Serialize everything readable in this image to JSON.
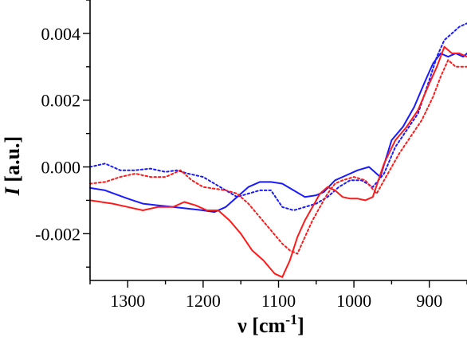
{
  "chart_data": {
    "type": "line",
    "xlabel": "ν [cm",
    "xlabel_sup": "-1",
    "xlabel_close": "]",
    "ylabel": "I",
    "ylabel_unit": " [a.u.]",
    "xlim": [
      1350,
      850
    ],
    "ylim": [
      -0.0034,
      0.005
    ],
    "x_reversed": true,
    "grid": false,
    "x_ticks": [
      1300,
      1200,
      1100,
      1000,
      900
    ],
    "x_tick_labels": [
      "1300",
      "1200",
      "1100",
      "1000",
      "900"
    ],
    "y_ticks": [
      0.004,
      0.002,
      0.0,
      -0.002
    ],
    "y_tick_labels": [
      "0.004",
      "0.002",
      "0.000",
      "-0.002"
    ],
    "series": [
      {
        "color": "#1a1aff",
        "style": "solid",
        "x": [
          1350,
          1330,
          1300,
          1280,
          1260,
          1240,
          1220,
          1200,
          1185,
          1170,
          1155,
          1140,
          1125,
          1110,
          1095,
          1080,
          1065,
          1050,
          1040,
          1025,
          1010,
          995,
          980,
          965,
          950,
          935,
          920,
          905,
          895,
          885,
          875,
          865,
          855,
          850
        ],
        "y": [
          -0.00063,
          -0.0007,
          -0.00095,
          -0.0011,
          -0.00115,
          -0.0012,
          -0.00125,
          -0.0013,
          -0.00135,
          -0.0012,
          -0.0009,
          -0.0006,
          -0.00045,
          -0.00045,
          -0.0005,
          -0.0007,
          -0.0009,
          -0.00085,
          -0.00075,
          -0.0004,
          -0.00025,
          -0.0001,
          0.0,
          -0.0003,
          0.0008,
          0.0012,
          0.0018,
          0.0026,
          0.0031,
          0.0034,
          0.0033,
          0.0034,
          0.0033,
          0.0034
        ]
      },
      {
        "color": "#1a1aff",
        "style": "dotted",
        "x": [
          1350,
          1330,
          1310,
          1290,
          1270,
          1250,
          1235,
          1220,
          1200,
          1185,
          1170,
          1155,
          1140,
          1125,
          1110,
          1095,
          1080,
          1065,
          1050,
          1035,
          1020,
          1005,
          990,
          975,
          960,
          945,
          930,
          915,
          900,
          890,
          880,
          870,
          860,
          850
        ],
        "y": [
          0.0,
          0.0001,
          -0.0001,
          -0.0001,
          -5e-05,
          -0.00015,
          -0.0001,
          -0.0002,
          -0.0003,
          -0.0005,
          -0.0007,
          -0.0009,
          -0.0008,
          -0.0007,
          -0.0007,
          -0.0012,
          -0.0013,
          -0.0012,
          -0.0011,
          -0.0009,
          -0.0006,
          -0.0004,
          -0.0004,
          -0.0006,
          -0.0002,
          0.0006,
          0.0011,
          0.0016,
          0.0026,
          0.0033,
          0.0038,
          0.004,
          0.0042,
          0.0043
        ]
      },
      {
        "color": "#ff1a1a",
        "style": "solid",
        "x": [
          1350,
          1320,
          1300,
          1280,
          1260,
          1240,
          1225,
          1210,
          1195,
          1180,
          1165,
          1150,
          1135,
          1120,
          1105,
          1095,
          1085,
          1075,
          1065,
          1055,
          1045,
          1035,
          1025,
          1015,
          1005,
          995,
          985,
          975,
          960,
          945,
          930,
          915,
          900,
          890,
          880,
          870,
          860,
          850
        ],
        "y": [
          -0.001,
          -0.0011,
          -0.0012,
          -0.0013,
          -0.0012,
          -0.0012,
          -0.00105,
          -0.00115,
          -0.0013,
          -0.0013,
          -0.0016,
          -0.002,
          -0.0025,
          -0.0028,
          -0.0032,
          -0.0033,
          -0.0028,
          -0.0021,
          -0.0016,
          -0.0012,
          -0.0008,
          -0.0006,
          -0.0007,
          -0.0009,
          -0.00095,
          -0.00095,
          -0.001,
          -0.0009,
          0.0001,
          0.0008,
          0.0012,
          0.0017,
          0.0025,
          0.003,
          0.0036,
          0.0034,
          0.0034,
          0.0033
        ]
      },
      {
        "color": "#ff1a1a",
        "style": "dotted",
        "x": [
          1350,
          1330,
          1310,
          1290,
          1270,
          1250,
          1230,
          1215,
          1200,
          1185,
          1170,
          1155,
          1140,
          1125,
          1110,
          1095,
          1085,
          1075,
          1065,
          1055,
          1045,
          1035,
          1025,
          1015,
          1000,
          985,
          970,
          955,
          940,
          925,
          910,
          895,
          885,
          875,
          865,
          850
        ],
        "y": [
          -0.0005,
          -0.00045,
          -0.0003,
          -0.0002,
          -0.0003,
          -0.0003,
          -0.0001,
          -0.0004,
          -0.0006,
          -0.00065,
          -0.0007,
          -0.0008,
          -0.0011,
          -0.0015,
          -0.0019,
          -0.0023,
          -0.0025,
          -0.0026,
          -0.0021,
          -0.0016,
          -0.0012,
          -0.0008,
          -0.0005,
          -0.0004,
          -0.0003,
          -0.0004,
          -0.0008,
          -0.0002,
          0.0004,
          0.0009,
          0.0014,
          0.0021,
          0.0027,
          0.0032,
          0.003,
          0.003
        ]
      }
    ]
  }
}
